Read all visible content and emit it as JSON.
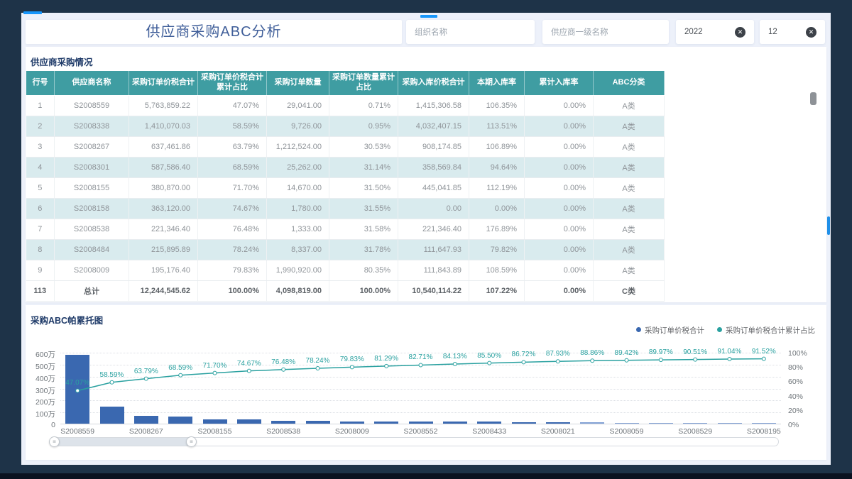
{
  "header": {
    "title": "供应商采购ABC分析",
    "filters": {
      "org": {
        "placeholder": "组织名称"
      },
      "supplier": {
        "placeholder": "供应商一级名称"
      },
      "year": {
        "value": "2022"
      },
      "month": {
        "value": "12"
      }
    }
  },
  "table_section": {
    "title": "供应商采购情况",
    "columns": [
      "行号",
      "供应商名称",
      "采购订单价税合计",
      "采购订单价税合计累计占比",
      "采购订单数量",
      "采购订单数量累计占比",
      "采购入库价税合计",
      "本期入库率",
      "累计入库率",
      "ABC分类"
    ],
    "rows": [
      [
        "1",
        "S2008559",
        "5,763,859.22",
        "47.07%",
        "29,041.00",
        "0.71%",
        "1,415,306.58",
        "106.35%",
        "0.00%",
        "A类"
      ],
      [
        "2",
        "S2008338",
        "1,410,070.03",
        "58.59%",
        "9,726.00",
        "0.95%",
        "4,032,407.15",
        "113.51%",
        "0.00%",
        "A类"
      ],
      [
        "3",
        "S2008267",
        "637,461.86",
        "63.79%",
        "1,212,524.00",
        "30.53%",
        "908,174.85",
        "106.89%",
        "0.00%",
        "A类"
      ],
      [
        "4",
        "S2008301",
        "587,586.40",
        "68.59%",
        "25,262.00",
        "31.14%",
        "358,569.84",
        "94.64%",
        "0.00%",
        "A类"
      ],
      [
        "5",
        "S2008155",
        "380,870.00",
        "71.70%",
        "14,670.00",
        "31.50%",
        "445,041.85",
        "112.19%",
        "0.00%",
        "A类"
      ],
      [
        "6",
        "S2008158",
        "363,120.00",
        "74.67%",
        "1,780.00",
        "31.55%",
        "0.00",
        "0.00%",
        "0.00%",
        "A类"
      ],
      [
        "7",
        "S2008538",
        "221,346.40",
        "76.48%",
        "1,333.00",
        "31.58%",
        "221,346.40",
        "176.89%",
        "0.00%",
        "A类"
      ],
      [
        "8",
        "S2008484",
        "215,895.89",
        "78.24%",
        "8,337.00",
        "31.78%",
        "111,647.93",
        "79.82%",
        "0.00%",
        "A类"
      ],
      [
        "9",
        "S2008009",
        "195,176.40",
        "79.83%",
        "1,990,920.00",
        "80.35%",
        "111,843.89",
        "108.59%",
        "0.00%",
        "A类"
      ],
      [
        "113",
        "总计",
        "12,244,545.62",
        "100.00%",
        "4,098,819.00",
        "100.00%",
        "10,540,114.22",
        "107.22%",
        "0.00%",
        "C类"
      ]
    ]
  },
  "chart_section": {
    "title": "采购ABC帕累托图",
    "legend": [
      {
        "label": "采购订单价税合计",
        "color": "#3a68b0"
      },
      {
        "label": "采购订单价税合计累计占比",
        "color": "#2aa1a0"
      }
    ]
  },
  "chart_data": {
    "type": "bar",
    "subtype": "pareto",
    "title": "采购ABC帕累托图",
    "x_visible_tick_labels": [
      "S2008559",
      "S2008267",
      "S2008155",
      "S2008538",
      "S2008009",
      "S2008552",
      "S2008433",
      "S2008021",
      "S2008059",
      "S2008529",
      "S2008195"
    ],
    "x_note": "21 bars total; x tick labels are shown for every other bar",
    "y_axis_left": {
      "ticks": [
        "600万",
        "500万",
        "400万",
        "300万",
        "200万",
        "100万",
        "0"
      ],
      "max_wan": 600
    },
    "y_axis_right": {
      "ticks": [
        "100%",
        "80%",
        "60%",
        "40%",
        "20%",
        "0%"
      ],
      "max_pct": 100
    },
    "series": [
      {
        "name": "采购订单价税合计",
        "type": "bar",
        "unit": "万元",
        "values": [
          576.4,
          141.0,
          63.7,
          58.8,
          38.1,
          36.3,
          22.1,
          21.6,
          19.5,
          17.9,
          17.4,
          17.4,
          16.8,
          14.9,
          14.8,
          11.4,
          6.9,
          6.7,
          6.6,
          6.5,
          5.9
        ]
      },
      {
        "name": "采购订单价税合计累计占比",
        "type": "line",
        "unit": "%",
        "values": [
          47.07,
          58.59,
          63.79,
          68.59,
          71.7,
          74.67,
          76.48,
          78.24,
          79.83,
          81.29,
          82.71,
          84.13,
          85.5,
          86.72,
          87.93,
          88.86,
          89.42,
          89.97,
          90.51,
          91.04,
          91.52
        ]
      }
    ],
    "grid": true,
    "legend_position": "top-right"
  },
  "colors": {
    "frame": "#1e3348",
    "accent_blue": "#1796fb",
    "content_bg": "#edf1fa",
    "table_header": "#3f9da2",
    "row_alt": "#d9ebee",
    "bar": "#3a68b0",
    "bar_light": "#84a3d6",
    "line": "#2aa1a0",
    "title_text": "#3f5e99"
  }
}
